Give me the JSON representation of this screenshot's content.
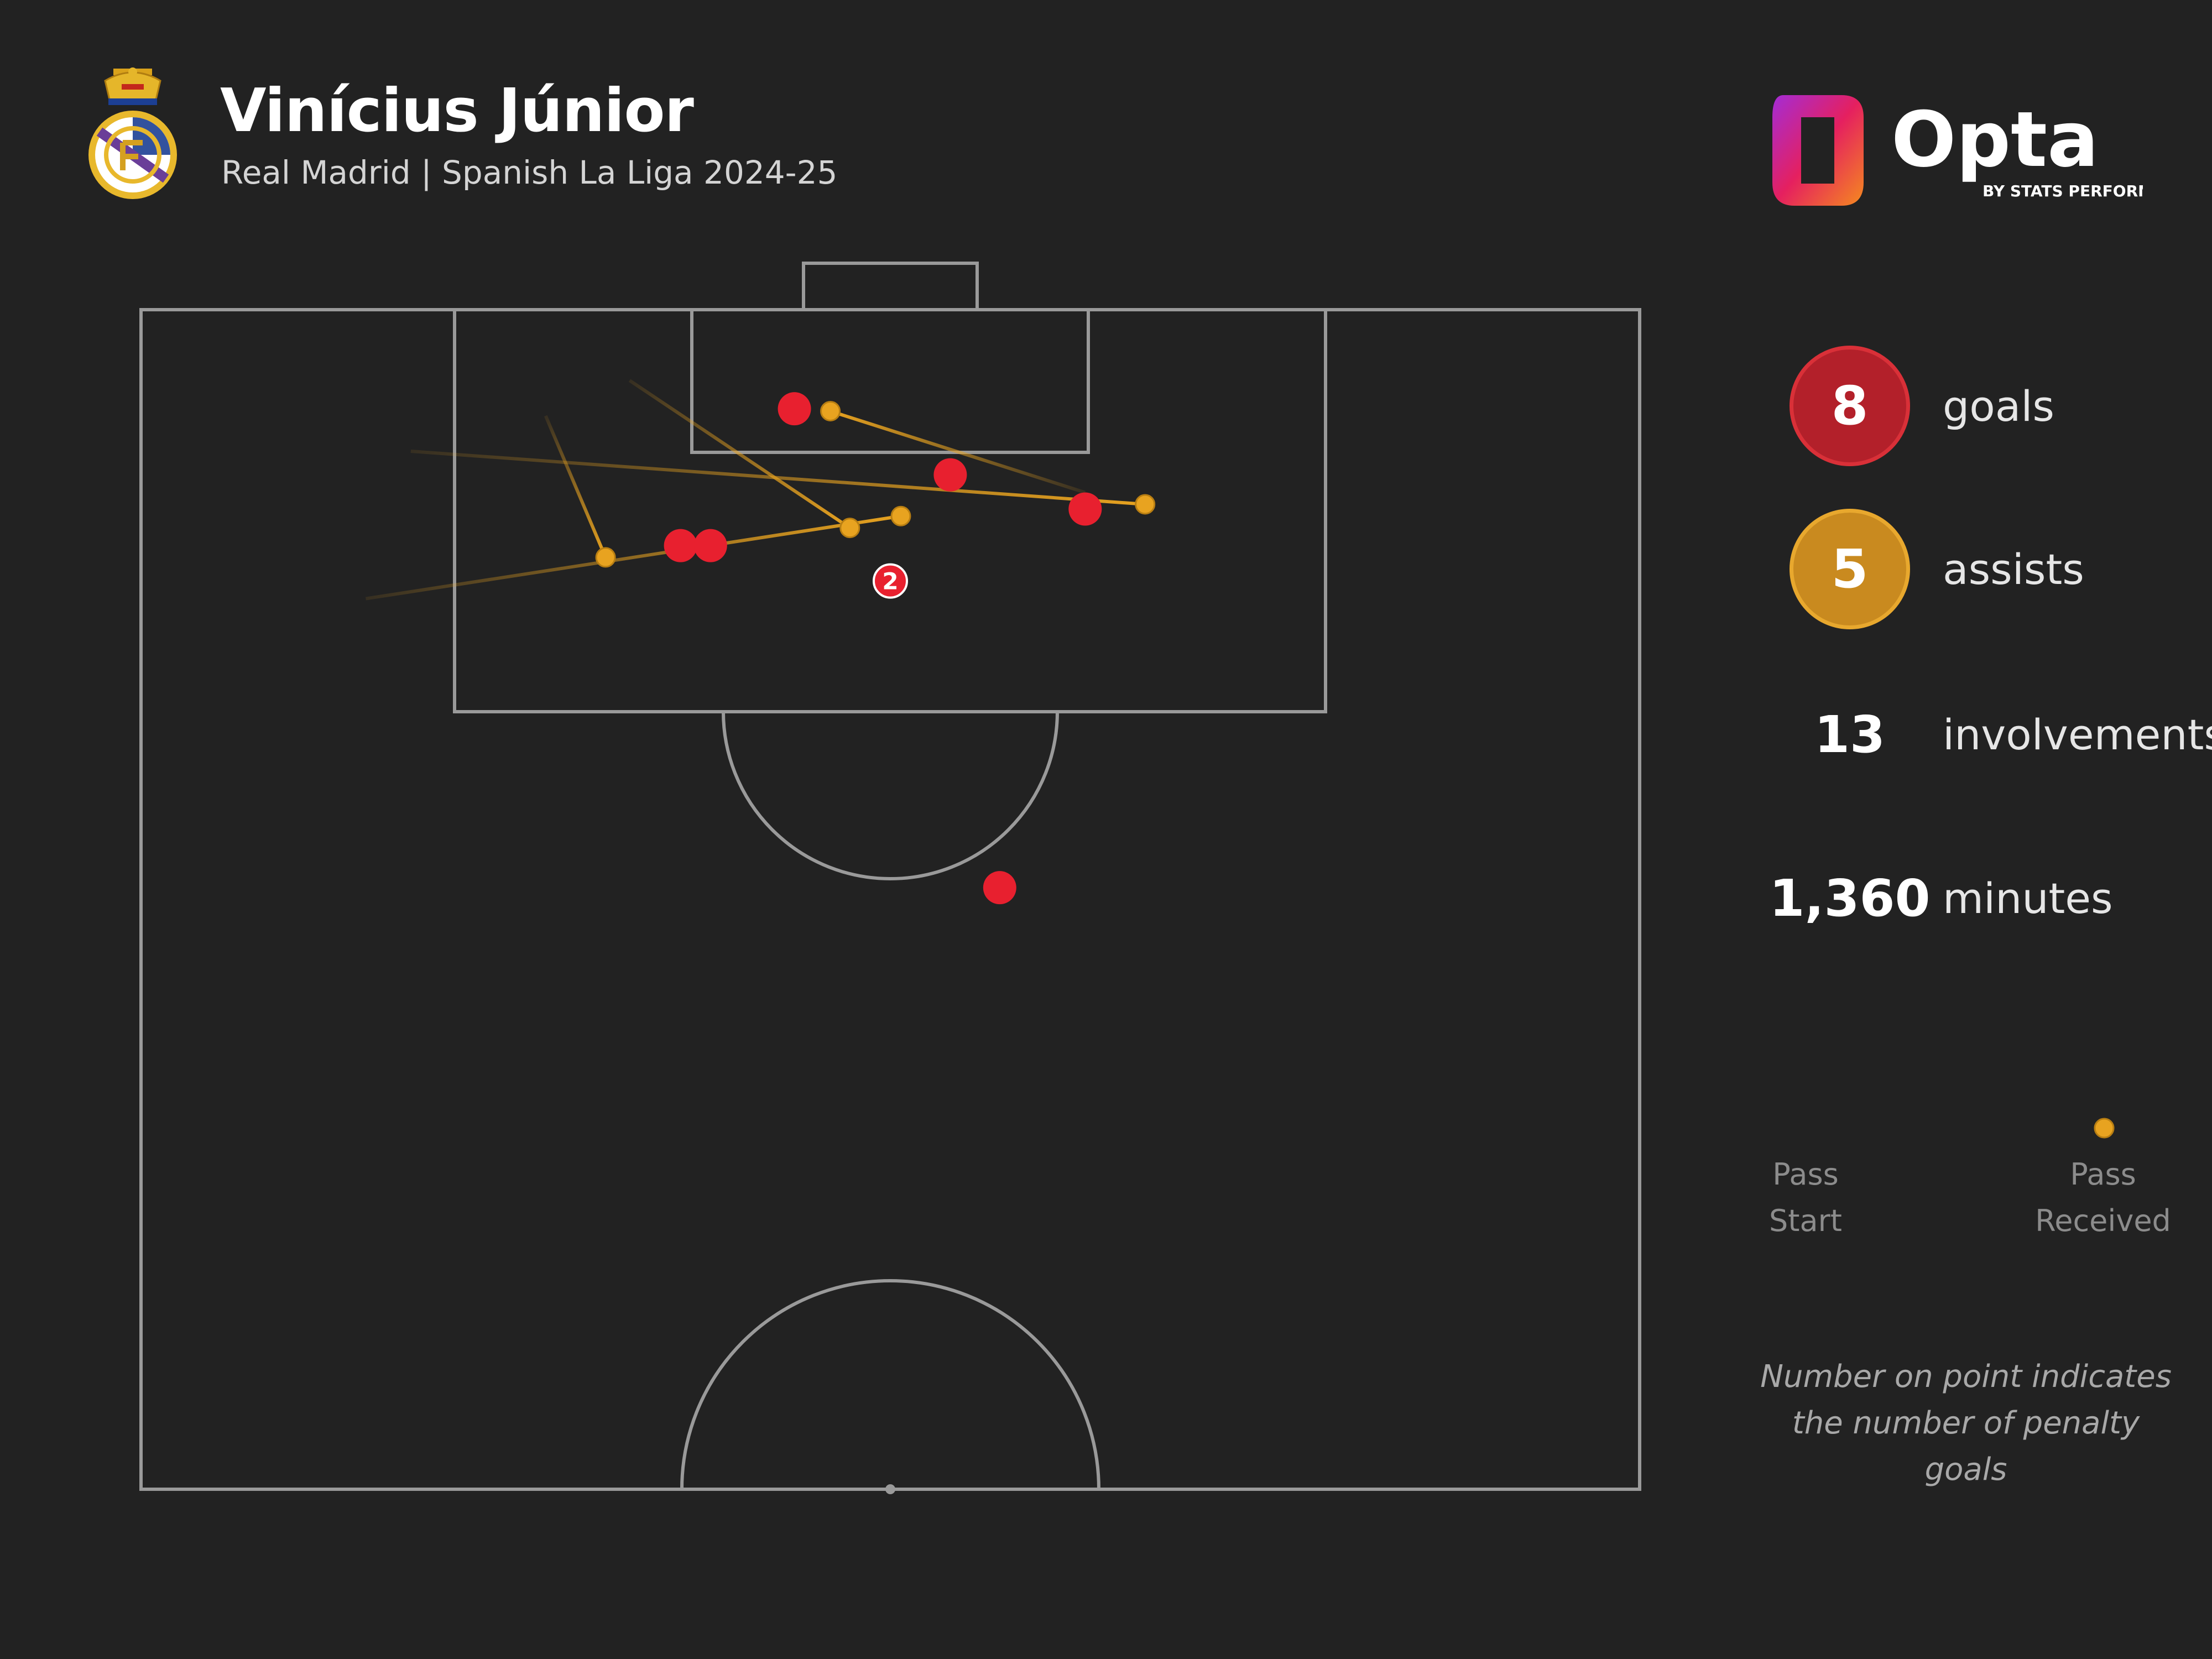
{
  "header": {
    "player_name": "Vinícius Júnior",
    "subtitle": "Real Madrid | Spanish La Liga 2024-25"
  },
  "branding": {
    "logo_text": "Opta",
    "logo_subtext": "BY STATS PERFORM"
  },
  "stats": {
    "goals_value": "8",
    "goals_label": "goals",
    "assists_value": "5",
    "assists_label": "assists",
    "involvements_value": "13",
    "involvements_label": "involvements",
    "minutes_value": "1,360",
    "minutes_label": "minutes"
  },
  "legend": {
    "start_line1": "Pass",
    "start_line2": "Start",
    "end_line1": "Pass",
    "end_line2": "Received"
  },
  "footnote": {
    "line1": "Number on point indicates",
    "line2": "the number of penalty goals"
  },
  "colors": {
    "background": "#222222",
    "pitch_lines": "#9a9a9a",
    "goal": "#e8202f",
    "assist": "#e8a320"
  },
  "chart_data": {
    "type": "scatter",
    "description_units": "pitch coordinates: x = 0-100 across the width (left to right), y = 0-100 along the length from halfway line (0) to goal line (100)",
    "goals": [
      {
        "x": 43.6,
        "y": 91.6,
        "penalty_goals": 0
      },
      {
        "x": 54.0,
        "y": 86.0,
        "penalty_goals": 0
      },
      {
        "x": 63.0,
        "y": 83.1,
        "penalty_goals": 0
      },
      {
        "x": 36.0,
        "y": 80.0,
        "penalty_goals": 0
      },
      {
        "x": 38.0,
        "y": 80.0,
        "penalty_goals": 0
      },
      {
        "x": 50.0,
        "y": 77.0,
        "penalty_goals": 2
      },
      {
        "x": 57.3,
        "y": 51.0,
        "penalty_goals": 0
      }
    ],
    "assists": [
      {
        "start": {
          "x": 18.0,
          "y": 88.0
        },
        "end": {
          "x": 67.0,
          "y": 83.5
        }
      },
      {
        "start": {
          "x": 15.0,
          "y": 75.5
        },
        "end": {
          "x": 50.7,
          "y": 82.5
        }
      },
      {
        "start": {
          "x": 27.0,
          "y": 91.0
        },
        "end": {
          "x": 31.0,
          "y": 79.0
        }
      },
      {
        "start": {
          "x": 32.6,
          "y": 94.0
        },
        "end": {
          "x": 47.3,
          "y": 81.5
        }
      },
      {
        "start": {
          "x": 63.0,
          "y": 84.5
        },
        "end": {
          "x": 46.0,
          "y": 91.4
        }
      }
    ]
  }
}
